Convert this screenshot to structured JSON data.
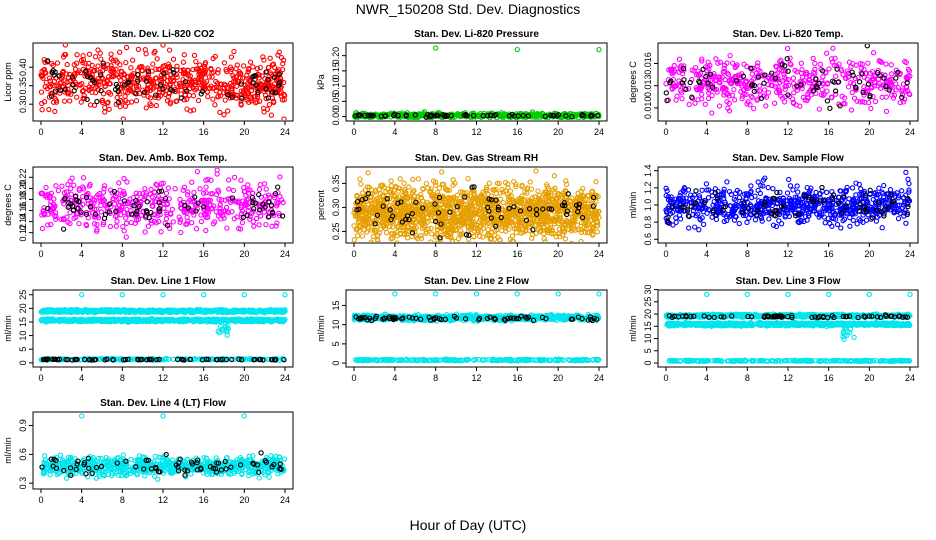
{
  "figure": {
    "title": "NWR_150208  Std. Dev. Diagnostics",
    "xlabel": "Hour of Day (UTC)"
  },
  "chart_data": [
    {
      "type": "scatter",
      "title": "Stan. Dev. Li-820 CO2",
      "ylabel": "Licor ppm",
      "xlim": [
        0,
        24
      ],
      "ylim": [
        0.26,
        0.46
      ],
      "xticks": [
        0,
        4,
        8,
        12,
        16,
        20,
        24
      ],
      "yticks": [
        "0.30",
        "0.35",
        "0.40"
      ],
      "series": [
        {
          "color": "#ff0000",
          "bands": [
            {
              "x0": 0,
              "x1": 24,
              "center": 0.36,
              "spread": 0.035,
              "count": 700
            }
          ],
          "outliers": [
            [
              2.4,
              0.46
            ],
            [
              8.1,
              0.26
            ],
            [
              12.0,
              0.46
            ],
            [
              23.9,
              0.26
            ]
          ]
        },
        {
          "color": "#000000",
          "bands": [
            {
              "x0": 0,
              "x1": 24,
              "center": 0.355,
              "spread": 0.025,
              "count": 70
            }
          ]
        }
      ]
    },
    {
      "type": "scatter",
      "title": "Stan. Dev. Li-820 Pressure",
      "ylabel": "kPa",
      "xlim": [
        0,
        24
      ],
      "ylim": [
        -0.008,
        0.235
      ],
      "xticks": [
        0,
        4,
        8,
        12,
        16,
        20,
        24
      ],
      "yticks": [
        "0.00",
        "0.05",
        "0.10",
        "0.15",
        "0.20"
      ],
      "series": [
        {
          "color": "#00cc00",
          "bands": [
            {
              "x0": 0,
              "x1": 24,
              "center": 0.004,
              "spread": 0.004,
              "count": 450
            }
          ],
          "outliers": [
            [
              8.0,
              0.225
            ],
            [
              16.0,
              0.22
            ],
            [
              24.0,
              0.22
            ]
          ]
        },
        {
          "color": "#000000",
          "bands": [
            {
              "x0": 0,
              "x1": 24,
              "center": 0.003,
              "spread": 0.002,
              "count": 70
            }
          ]
        }
      ]
    },
    {
      "type": "scatter",
      "title": "Stan. Dev. Li-820 Temp.",
      "ylabel": "degrees C",
      "xlim": [
        0,
        24
      ],
      "ylim": [
        0.0085,
        0.0185
      ],
      "xticks": [
        0,
        4,
        8,
        12,
        16,
        20,
        24
      ],
      "yticks": [
        "0.010",
        "0.013",
        "0.016"
      ],
      "series": [
        {
          "color": "#ff00ff",
          "bands": [
            {
              "x0": 0,
              "x1": 24,
              "center": 0.0135,
              "spread": 0.0016,
              "count": 500
            }
          ]
        },
        {
          "color": "#000000",
          "bands": [
            {
              "x0": 0,
              "x1": 24,
              "center": 0.0135,
              "spread": 0.0014,
              "count": 70
            }
          ],
          "outliers": [
            [
              19.8,
              0.0184
            ]
          ]
        }
      ]
    },
    {
      "type": "scatter",
      "title": "Stan. Dev. Amb. Box Temp.",
      "ylabel": "degrees C",
      "xlim": [
        0,
        24
      ],
      "ylim": [
        0.105,
        0.235
      ],
      "xticks": [
        0,
        4,
        8,
        12,
        16,
        20,
        24
      ],
      "yticks": [
        "0.12",
        "0.14",
        "0.16",
        "0.18",
        "0.20",
        "0.22"
      ],
      "series": [
        {
          "color": "#ff00ff",
          "bands": [
            {
              "x0": 0,
              "x1": 24,
              "center": 0.17,
              "spread": 0.022,
              "count": 500
            }
          ]
        },
        {
          "color": "#000000",
          "bands": [
            {
              "x0": 0,
              "x1": 24,
              "center": 0.168,
              "spread": 0.018,
              "count": 70
            }
          ]
        }
      ]
    },
    {
      "type": "scatter",
      "title": "Stan. Dev. Gas Stream RH",
      "ylabel": "percent",
      "xlim": [
        0,
        24
      ],
      "ylim": [
        0.23,
        0.38
      ],
      "xticks": [
        0,
        4,
        8,
        12,
        16,
        20,
        24
      ],
      "yticks": [
        "0.25",
        "0.30",
        "0.35"
      ],
      "series": [
        {
          "color": "#e69f00",
          "bands": [
            {
              "x0": 0,
              "x1": 24,
              "center": 0.29,
              "spread": 0.028,
              "count": 1500
            }
          ]
        },
        {
          "color": "#000000",
          "bands": [
            {
              "x0": 0,
              "x1": 24,
              "center": 0.292,
              "spread": 0.022,
              "count": 70
            }
          ]
        }
      ]
    },
    {
      "type": "scatter",
      "title": "Stan. Dev. Sample Flow",
      "ylabel": "ml/min",
      "xlim": [
        0,
        24
      ],
      "ylim": [
        0.58,
        1.42
      ],
      "xticks": [
        0,
        4,
        8,
        12,
        16,
        20,
        24
      ],
      "yticks": [
        "0.6",
        "0.8",
        "1.0",
        "1.2",
        "1.4"
      ],
      "series": [
        {
          "color": "#0000ff",
          "bands": [
            {
              "x0": 0,
              "x1": 24,
              "center": 1.0,
              "spread": 0.11,
              "count": 700
            }
          ],
          "outliers": [
            [
              23.6,
              1.38
            ],
            [
              23.8,
              1.3
            ],
            [
              23.9,
              1.25
            ]
          ]
        },
        {
          "color": "#000000",
          "bands": [
            {
              "x0": 0,
              "x1": 24,
              "center": 1.0,
              "spread": 0.09,
              "count": 70
            }
          ]
        }
      ]
    },
    {
      "type": "scatter",
      "title": "Stan. Dev. Line 1 Flow",
      "ylabel": "ml/min",
      "xlim": [
        0,
        24
      ],
      "ylim": [
        -0.8,
        26
      ],
      "xticks": [
        0,
        4,
        8,
        12,
        16,
        20,
        24
      ],
      "yticks": [
        "0",
        "5",
        "10",
        "15",
        "20",
        "25"
      ],
      "series": [
        {
          "color": "#00e5ee",
          "bands": [
            {
              "x0": 0,
              "x1": 24,
              "center": 19.0,
              "spread": 0.25,
              "count": 700
            },
            {
              "x0": 0,
              "x1": 24,
              "center": 15.6,
              "spread": 0.25,
              "count": 700
            },
            {
              "x0": 0,
              "x1": 24,
              "center": 1.3,
              "spread": 0.15,
              "count": 200
            },
            {
              "x0": 17.3,
              "x1": 18.5,
              "center": 12.5,
              "spread": 1.2,
              "count": 14
            }
          ],
          "outliers": [
            [
              4,
              25
            ],
            [
              8,
              25
            ],
            [
              12,
              25
            ],
            [
              16,
              25
            ],
            [
              20,
              25
            ],
            [
              24,
              25
            ]
          ]
        },
        {
          "color": "#000000",
          "bands": [
            {
              "x0": 0,
              "x1": 24,
              "center": 1.2,
              "spread": 0.1,
              "count": 70
            }
          ]
        }
      ]
    },
    {
      "type": "scatter",
      "title": "Stan. Dev. Line 2 Flow",
      "ylabel": "ml/min",
      "xlim": [
        0,
        24
      ],
      "ylim": [
        -0.5,
        18.5
      ],
      "xticks": [
        0,
        4,
        8,
        12,
        16,
        20,
        24
      ],
      "yticks": [
        "0",
        "5",
        "10",
        "15"
      ],
      "series": [
        {
          "color": "#00e5ee",
          "bands": [
            {
              "x0": 0,
              "x1": 24,
              "center": 11.8,
              "spread": 0.35,
              "count": 700
            },
            {
              "x0": 0,
              "x1": 24,
              "center": 0.8,
              "spread": 0.1,
              "count": 250
            }
          ],
          "outliers": [
            [
              4,
              18
            ],
            [
              8,
              18
            ],
            [
              12,
              18
            ],
            [
              16,
              18
            ],
            [
              20,
              18
            ],
            [
              24,
              18
            ]
          ]
        },
        {
          "color": "#000000",
          "bands": [
            {
              "x0": 0,
              "x1": 24,
              "center": 11.6,
              "spread": 0.3,
              "count": 70
            }
          ]
        }
      ]
    },
    {
      "type": "scatter",
      "title": "Stan. Dev. Line 3 Flow",
      "ylabel": "ml/min",
      "xlim": [
        0,
        24
      ],
      "ylim": [
        -0.8,
        29
      ],
      "xticks": [
        0,
        4,
        8,
        12,
        16,
        20,
        24
      ],
      "yticks": [
        "0",
        "5",
        "10",
        "15",
        "20",
        "25",
        "30"
      ],
      "series": [
        {
          "color": "#00e5ee",
          "bands": [
            {
              "x0": 0,
              "x1": 24,
              "center": 19.3,
              "spread": 0.3,
              "count": 700
            },
            {
              "x0": 0,
              "x1": 24,
              "center": 15.8,
              "spread": 0.3,
              "count": 700
            },
            {
              "x0": 0,
              "x1": 24,
              "center": 0.9,
              "spread": 0.1,
              "count": 250
            },
            {
              "x0": 17.4,
              "x1": 18.6,
              "center": 12.5,
              "spread": 1.6,
              "count": 14
            }
          ],
          "outliers": [
            [
              4,
              28
            ],
            [
              8,
              28
            ],
            [
              12,
              28
            ],
            [
              16,
              28
            ],
            [
              20,
              28
            ],
            [
              24,
              28
            ]
          ]
        },
        {
          "color": "#000000",
          "bands": [
            {
              "x0": 0,
              "x1": 24,
              "center": 19.0,
              "spread": 0.25,
              "count": 70
            }
          ]
        }
      ]
    },
    {
      "type": "scatter",
      "title": "Stan. Dev. Line 4 (LT) Flow",
      "ylabel": "ml/min",
      "xlim": [
        0,
        24
      ],
      "ylim": [
        0.26,
        1.02
      ],
      "xticks": [
        0,
        4,
        8,
        12,
        16,
        20,
        24
      ],
      "yticks": [
        "0.3",
        "0.6",
        "0.9"
      ],
      "series": [
        {
          "color": "#00e5ee",
          "bands": [
            {
              "x0": 0,
              "x1": 24,
              "center": 0.48,
              "spread": 0.05,
              "count": 700
            }
          ],
          "outliers": [
            [
              4,
              1.0
            ],
            [
              12,
              1.0
            ],
            [
              20,
              1.0
            ]
          ]
        },
        {
          "color": "#000000",
          "bands": [
            {
              "x0": 0,
              "x1": 24,
              "center": 0.48,
              "spread": 0.045,
              "count": 70
            }
          ]
        }
      ]
    }
  ]
}
